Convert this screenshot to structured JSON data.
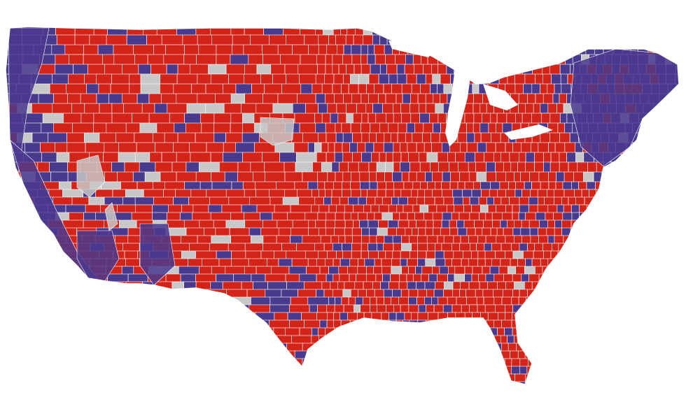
{
  "map": {
    "type": "county-choropleth",
    "region": "contiguous-united-states",
    "colors": {
      "red": "#d3241a",
      "blue": "#4a3a8e",
      "gray": "#c8c8c8",
      "border": "#ffffff",
      "background": "#ffffff"
    },
    "legend": null
  }
}
